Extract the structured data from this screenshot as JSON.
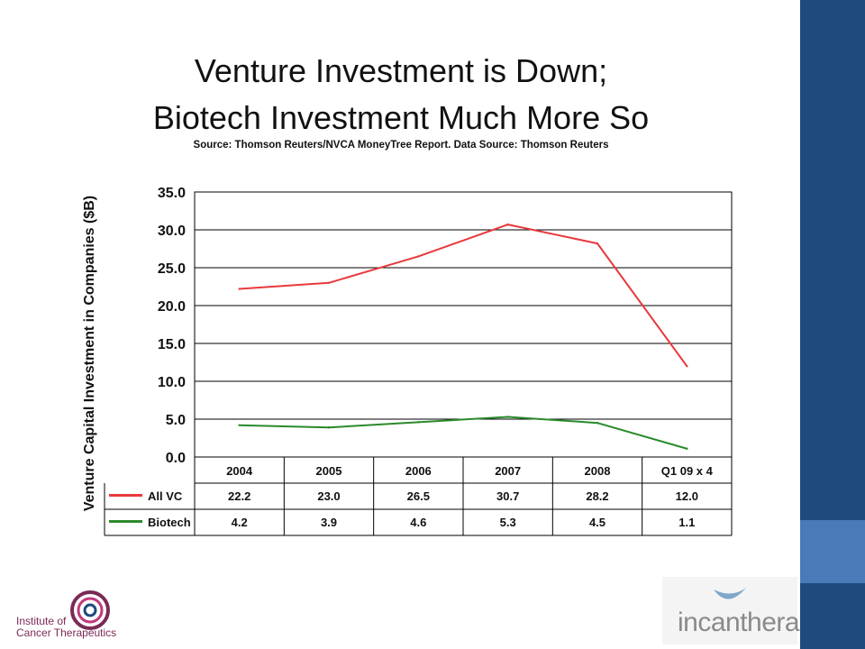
{
  "slide": {
    "title_line1": "Venture Investment is Down;",
    "title_line2": "Biotech Investment Much More So",
    "source": "Source: Thomson Reuters/NVCA MoneyTree Report. Data Source: Thomson Reuters"
  },
  "logos": {
    "left_text_line1": "Institute of",
    "left_text_line2": "Cancer Therapeutics",
    "right_text": "incanthera"
  },
  "colors": {
    "all_vc": "#e8393d",
    "biotech": "#2a8a2a",
    "sidebar_dark": "#1f4a7d",
    "sidebar_light": "#4a7ab8"
  },
  "chart_data": {
    "type": "line",
    "title": "",
    "xlabel": "",
    "ylabel": "Venture Capital Investment in Companies ($B)",
    "ylim": [
      0,
      35
    ],
    "yticks": [
      "0.0",
      "5.0",
      "10.0",
      "15.0",
      "20.0",
      "25.0",
      "30.0",
      "35.0"
    ],
    "grid": true,
    "categories": [
      "2004",
      "2005",
      "2006",
      "2007",
      "2008",
      "Q1 09 x 4"
    ],
    "series": [
      {
        "name": "All VC",
        "values": [
          22.2,
          23.0,
          26.5,
          30.7,
          28.2,
          12.0
        ],
        "labels": [
          "22.2",
          "23.0",
          "26.5",
          "30.7",
          "28.2",
          "12.0"
        ]
      },
      {
        "name": "Biotech",
        "values": [
          4.2,
          3.9,
          4.6,
          5.3,
          4.5,
          1.1
        ],
        "labels": [
          "4.2",
          "3.9",
          "4.6",
          "5.3",
          "4.5",
          "1.1"
        ]
      }
    ]
  }
}
